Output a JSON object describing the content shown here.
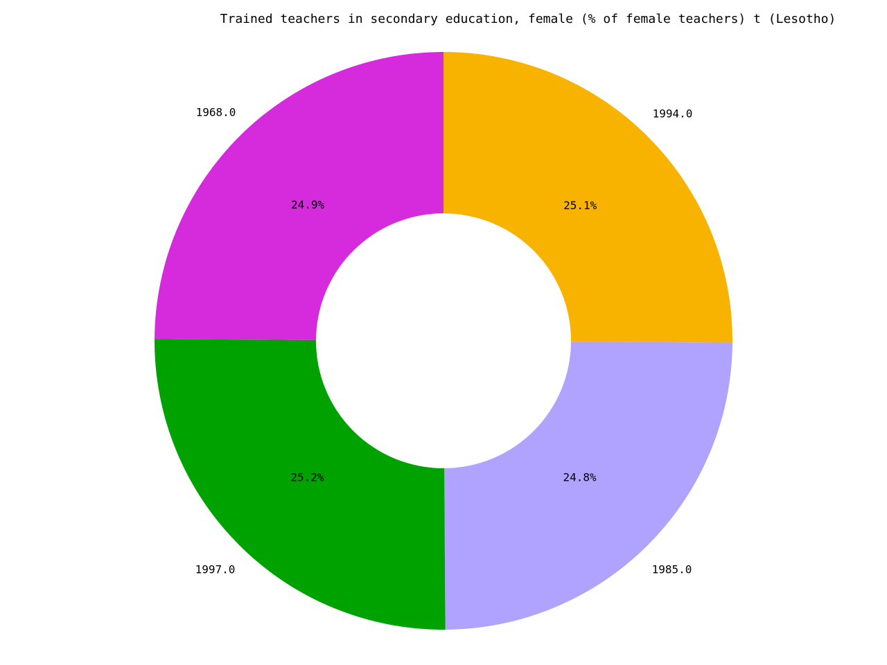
{
  "chart_data": {
    "type": "pie",
    "variant": "donut",
    "title": "Trained teachers in secondary education, female (% of female teachers) t (Lesotho)",
    "slices": [
      {
        "label": "1994.0",
        "percent_label": "25.1%",
        "value": 25.1,
        "color": "#f8b300"
      },
      {
        "label": "1985.0",
        "percent_label": "24.8%",
        "value": 24.8,
        "color": "#b0a3ff"
      },
      {
        "label": "1997.0",
        "percent_label": "25.2%",
        "value": 25.2,
        "color": "#00a200"
      },
      {
        "label": "1968.0",
        "percent_label": "24.9%",
        "value": 24.9,
        "color": "#d62bdc"
      }
    ],
    "start_angle_deg": 90,
    "direction": "clockwise",
    "legend": "none"
  }
}
